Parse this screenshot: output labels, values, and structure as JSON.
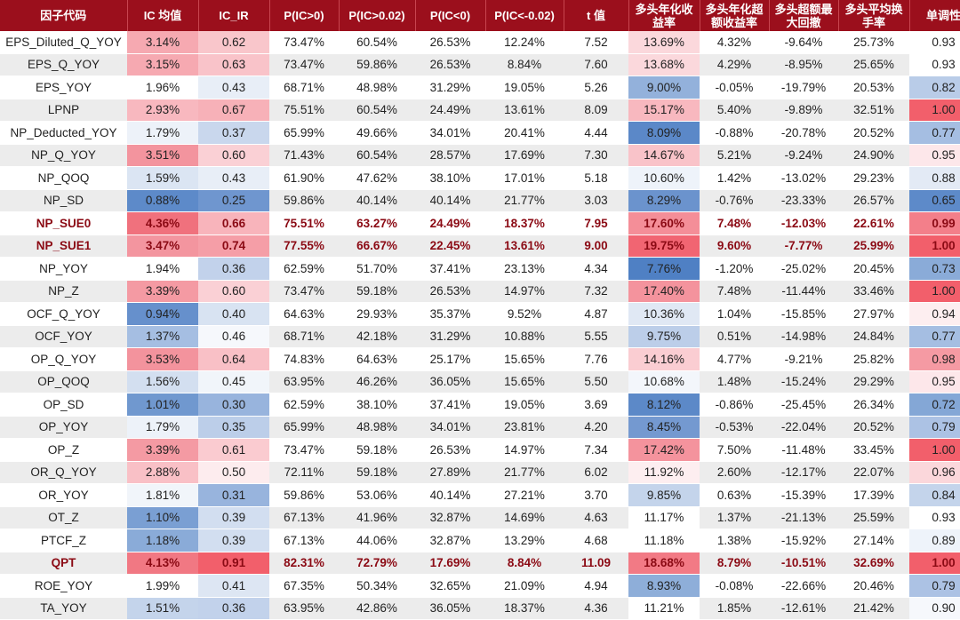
{
  "headers": [
    "因子代码",
    "IC 均值",
    "IC_IR",
    "P(IC>0)",
    "P(IC>0.02)",
    "P(IC<0)",
    "P(IC<-0.02)",
    "t 值",
    "多头年化收益率",
    "多头年化超额收益率",
    "多头超额最大回撤",
    "多头平均换手率",
    "单调性"
  ],
  "header_lines": [
    [
      "因子代码"
    ],
    [
      "IC 均值"
    ],
    [
      "IC_IR"
    ],
    [
      "P(IC>0)"
    ],
    [
      "P(IC>0.02)"
    ],
    [
      "P(IC<0)"
    ],
    [
      "P(IC<-0.02)"
    ],
    [
      "t 值"
    ],
    [
      "多头年化收",
      "益率"
    ],
    [
      "多头年化超",
      "额收益率"
    ],
    [
      "多头超额最",
      "大回撤"
    ],
    [
      "多头平均换",
      "手率"
    ],
    [
      "单调性"
    ]
  ],
  "rows": [
    {
      "cells": [
        "EPS_Diluted_Q_YOY",
        "3.14%",
        "0.62",
        "73.47%",
        "60.54%",
        "26.53%",
        "12.24%",
        "7.52",
        "13.69%",
        "4.32%",
        "-9.64%",
        "25.73%",
        "0.93"
      ],
      "highlight": false,
      "colors": {
        "ic": "#f6a9b1",
        "icir": "#f9c6cb",
        "ret": "#fbd8dc",
        "mono": "#ffffff"
      }
    },
    {
      "cells": [
        "EPS_Q_YOY",
        "3.15%",
        "0.63",
        "73.47%",
        "59.86%",
        "26.53%",
        "8.84%",
        "7.60",
        "13.68%",
        "4.29%",
        "-8.95%",
        "25.65%",
        "0.93"
      ],
      "highlight": false,
      "colors": {
        "ic": "#f6a9b1",
        "icir": "#f9c3c9",
        "ret": "#fbd8dc",
        "mono": "#ffffff"
      }
    },
    {
      "cells": [
        "EPS_YOY",
        "1.96%",
        "0.43",
        "68.71%",
        "48.98%",
        "31.29%",
        "19.05%",
        "5.26",
        "9.00%",
        "-0.05%",
        "-19.79%",
        "20.53%",
        "0.82"
      ],
      "highlight": false,
      "colors": {
        "ic": "#ffffff",
        "icir": "#e8eef7",
        "ret": "#93b1db",
        "mono": "#b9cce8"
      }
    },
    {
      "cells": [
        "LPNP",
        "2.93%",
        "0.67",
        "75.51%",
        "60.54%",
        "24.49%",
        "13.61%",
        "8.09",
        "15.17%",
        "5.40%",
        "-9.89%",
        "32.51%",
        "1.00"
      ],
      "highlight": false,
      "colors": {
        "ic": "#f8b8bf",
        "icir": "#f7b1b8",
        "ret": "#f8b8bf",
        "mono": "#f25f6b"
      }
    },
    {
      "cells": [
        "NP_Deducted_YOY",
        "1.79%",
        "0.37",
        "65.99%",
        "49.66%",
        "34.01%",
        "20.41%",
        "4.44",
        "8.09%",
        "-0.88%",
        "-20.78%",
        "20.52%",
        "0.77"
      ],
      "highlight": false,
      "colors": {
        "ic": "#edf2f9",
        "icir": "#c9d7ed",
        "ret": "#5b88c8",
        "mono": "#a5bee2"
      }
    },
    {
      "cells": [
        "NP_Q_YOY",
        "3.51%",
        "0.60",
        "71.43%",
        "60.54%",
        "28.57%",
        "17.69%",
        "7.30",
        "14.67%",
        "5.21%",
        "-9.24%",
        "24.90%",
        "0.95"
      ],
      "highlight": false,
      "colors": {
        "ic": "#f3949e",
        "icir": "#fad0d5",
        "ret": "#f9c3c9",
        "mono": "#fde7ea"
      }
    },
    {
      "cells": [
        "NP_QOQ",
        "1.59%",
        "0.43",
        "61.90%",
        "47.62%",
        "38.10%",
        "17.01%",
        "5.18",
        "10.60%",
        "1.42%",
        "-13.02%",
        "29.23%",
        "0.88"
      ],
      "highlight": false,
      "colors": {
        "ic": "#dbe5f3",
        "icir": "#e8eef7",
        "ret": "#eef3fa",
        "mono": "#e3eaf5"
      }
    },
    {
      "cells": [
        "NP_SD",
        "0.88%",
        "0.25",
        "59.86%",
        "40.14%",
        "40.14%",
        "21.77%",
        "3.03",
        "8.29%",
        "-0.76%",
        "-23.33%",
        "26.57%",
        "0.65"
      ],
      "highlight": false,
      "colors": {
        "ic": "#5d8ac9",
        "icir": "#6f96cf",
        "ret": "#6b93cd",
        "mono": "#5d8ac9"
      }
    },
    {
      "cells": [
        "NP_SUE0",
        "4.36%",
        "0.66",
        "75.51%",
        "63.27%",
        "24.49%",
        "18.37%",
        "7.95",
        "17.60%",
        "7.48%",
        "-12.03%",
        "22.61%",
        "0.99"
      ],
      "highlight": true,
      "colors": {
        "ic": "#f0717d",
        "icir": "#f8b4bb",
        "ret": "#f48e98",
        "mono": "#f37f8a"
      }
    },
    {
      "cells": [
        "NP_SUE1",
        "3.47%",
        "0.74",
        "77.55%",
        "66.67%",
        "22.45%",
        "13.61%",
        "9.00",
        "19.75%",
        "9.60%",
        "-7.77%",
        "25.99%",
        "1.00"
      ],
      "highlight": true,
      "colors": {
        "ic": "#f3959f",
        "icir": "#f59ea7",
        "ret": "#f16572",
        "mono": "#f25f6b"
      }
    },
    {
      "cells": [
        "NP_YOY",
        "1.94%",
        "0.36",
        "62.59%",
        "51.70%",
        "37.41%",
        "23.13%",
        "4.34",
        "7.76%",
        "-1.20%",
        "-25.02%",
        "20.45%",
        "0.73"
      ],
      "highlight": false,
      "colors": {
        "ic": "#ffffff",
        "icir": "#c2d2eb",
        "ret": "#4f80c4",
        "mono": "#8aabd8"
      }
    },
    {
      "cells": [
        "NP_Z",
        "3.39%",
        "0.60",
        "73.47%",
        "59.18%",
        "26.53%",
        "14.97%",
        "7.32",
        "17.40%",
        "7.48%",
        "-11.44%",
        "33.46%",
        "1.00"
      ],
      "highlight": false,
      "colors": {
        "ic": "#f49aa3",
        "icir": "#fad0d5",
        "ret": "#f4939d",
        "mono": "#f25f6b"
      }
    },
    {
      "cells": [
        "OCF_Q_YOY",
        "0.94%",
        "0.40",
        "64.63%",
        "29.93%",
        "35.37%",
        "9.52%",
        "4.87",
        "10.36%",
        "1.04%",
        "-15.85%",
        "27.97%",
        "0.94"
      ],
      "highlight": false,
      "colors": {
        "ic": "#6690cc",
        "icir": "#d8e3f2",
        "ret": "#e0e8f4",
        "mono": "#fdeef0"
      }
    },
    {
      "cells": [
        "OCF_YOY",
        "1.37%",
        "0.46",
        "68.71%",
        "42.18%",
        "31.29%",
        "10.88%",
        "5.55",
        "9.75%",
        "0.51%",
        "-14.98%",
        "24.84%",
        "0.77"
      ],
      "highlight": false,
      "colors": {
        "ic": "#a5bee2",
        "icir": "#f6f8fc",
        "ret": "#bccee9",
        "mono": "#a5bee2"
      }
    },
    {
      "cells": [
        "OP_Q_YOY",
        "3.53%",
        "0.64",
        "74.83%",
        "64.63%",
        "25.17%",
        "15.65%",
        "7.76",
        "14.16%",
        "4.77%",
        "-9.21%",
        "25.82%",
        "0.98"
      ],
      "highlight": false,
      "colors": {
        "ic": "#f3939d",
        "icir": "#f9c0c6",
        "ret": "#facdd2",
        "mono": "#f59aa3"
      }
    },
    {
      "cells": [
        "OP_QOQ",
        "1.56%",
        "0.45",
        "63.95%",
        "46.26%",
        "36.05%",
        "15.65%",
        "5.50",
        "10.68%",
        "1.48%",
        "-15.24%",
        "29.29%",
        "0.95"
      ],
      "highlight": false,
      "colors": {
        "ic": "#d3dff0",
        "icir": "#f1f5fa",
        "ret": "#f3f6fb",
        "mono": "#fde7ea"
      }
    },
    {
      "cells": [
        "OP_SD",
        "1.01%",
        "0.30",
        "62.59%",
        "38.10%",
        "37.41%",
        "19.05%",
        "3.69",
        "8.12%",
        "-0.86%",
        "-25.45%",
        "26.34%",
        "0.72"
      ],
      "highlight": false,
      "colors": {
        "ic": "#7098cf",
        "icir": "#98b4dd",
        "ret": "#5c89c8",
        "mono": "#84a7d6"
      }
    },
    {
      "cells": [
        "OP_YOY",
        "1.79%",
        "0.35",
        "65.99%",
        "48.98%",
        "34.01%",
        "23.81%",
        "4.20",
        "8.45%",
        "-0.53%",
        "-22.04%",
        "20.52%",
        "0.79"
      ],
      "highlight": false,
      "colors": {
        "ic": "#edf2f9",
        "icir": "#bccee9",
        "ret": "#7499d0",
        "mono": "#acc2e4"
      }
    },
    {
      "cells": [
        "OP_Z",
        "3.39%",
        "0.61",
        "73.47%",
        "59.18%",
        "26.53%",
        "14.97%",
        "7.34",
        "17.42%",
        "7.50%",
        "-11.48%",
        "33.45%",
        "1.00"
      ],
      "highlight": false,
      "colors": {
        "ic": "#f49aa3",
        "icir": "#facbd0",
        "ret": "#f4939d",
        "mono": "#f25f6b"
      }
    },
    {
      "cells": [
        "OR_Q_YOY",
        "2.88%",
        "0.50",
        "72.11%",
        "59.18%",
        "27.89%",
        "21.77%",
        "6.02",
        "11.92%",
        "2.60%",
        "-12.17%",
        "22.07%",
        "0.96"
      ],
      "highlight": false,
      "colors": {
        "ic": "#f9c0c6",
        "icir": "#fdecee",
        "ret": "#fdeef0",
        "mono": "#fbd7db"
      }
    },
    {
      "cells": [
        "OR_YOY",
        "1.81%",
        "0.31",
        "59.86%",
        "53.06%",
        "40.14%",
        "27.21%",
        "3.70",
        "9.85%",
        "0.63%",
        "-15.39%",
        "17.39%",
        "0.84"
      ],
      "highlight": false,
      "colors": {
        "ic": "#f1f5fa",
        "icir": "#98b4dd",
        "ret": "#c4d4eb",
        "mono": "#c4d4eb"
      }
    },
    {
      "cells": [
        "OT_Z",
        "1.10%",
        "0.39",
        "67.13%",
        "41.96%",
        "32.87%",
        "14.69%",
        "4.63",
        "11.17%",
        "1.37%",
        "-21.13%",
        "25.59%",
        "0.93"
      ],
      "highlight": false,
      "colors": {
        "ic": "#7a9fd3",
        "icir": "#d2def0",
        "ret": "#ffffff",
        "mono": "#ffffff"
      }
    },
    {
      "cells": [
        "PTCF_Z",
        "1.18%",
        "0.39",
        "67.13%",
        "44.06%",
        "32.87%",
        "13.29%",
        "4.68",
        "11.18%",
        "1.38%",
        "-15.92%",
        "27.14%",
        "0.89"
      ],
      "highlight": false,
      "colors": {
        "ic": "#8aabd8",
        "icir": "#d2def0",
        "ret": "#ffffff",
        "mono": "#eef3fa"
      }
    },
    {
      "cells": [
        "QPT",
        "4.13%",
        "0.91",
        "82.31%",
        "72.79%",
        "17.69%",
        "8.84%",
        "11.09",
        "18.68%",
        "8.79%",
        "-10.51%",
        "32.69%",
        "1.00"
      ],
      "highlight": true,
      "colors": {
        "ic": "#f17883",
        "icir": "#f25f6b",
        "ret": "#f27a85",
        "mono": "#f25f6b"
      }
    },
    {
      "cells": [
        "ROE_YOY",
        "1.99%",
        "0.41",
        "67.35%",
        "50.34%",
        "32.65%",
        "21.09%",
        "4.94",
        "8.93%",
        "-0.08%",
        "-22.66%",
        "20.46%",
        "0.79"
      ],
      "highlight": false,
      "colors": {
        "ic": "#ffffff",
        "icir": "#dde6f3",
        "ret": "#8eaed9",
        "mono": "#acc2e4"
      }
    },
    {
      "cells": [
        "TA_YOY",
        "1.51%",
        "0.36",
        "63.95%",
        "42.86%",
        "36.05%",
        "18.37%",
        "4.36",
        "11.21%",
        "1.85%",
        "-12.61%",
        "21.42%",
        "0.90"
      ],
      "highlight": false,
      "colors": {
        "ic": "#c4d4eb",
        "icir": "#c2d2eb",
        "ret": "#ffffff",
        "mono": "#f6f8fc"
      }
    }
  ]
}
